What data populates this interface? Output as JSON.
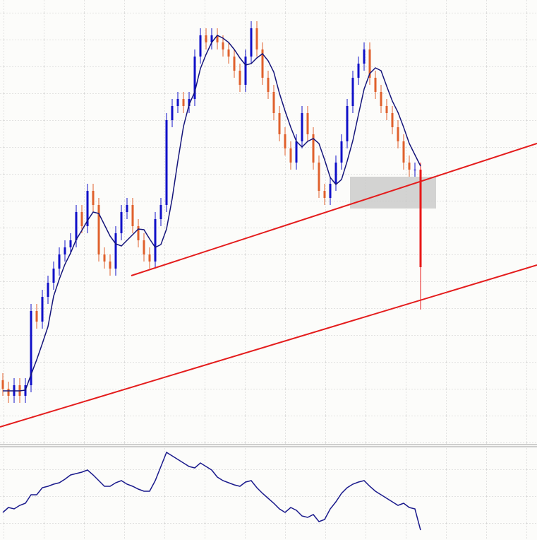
{
  "chart_data": [
    {
      "type": "candlestick",
      "xlim": [
        -0.5,
        94.625
      ],
      "ylim": [
        0,
        628
      ],
      "up_color": "#1010c8",
      "down_color": "#e0602c",
      "last_color": "#e81818",
      "open": [
        90,
        78,
        68,
        83,
        68,
        83,
        188,
        173,
        208,
        228,
        248,
        268,
        278,
        288,
        328,
        308,
        358,
        338,
        268,
        258,
        248,
        298,
        328,
        338,
        308,
        288,
        268,
        258,
        318,
        338,
        458,
        478,
        488,
        478,
        488,
        548,
        578,
        568,
        578,
        568,
        558,
        548,
        528,
        508,
        548,
        588,
        558,
        518,
        498,
        468,
        438,
        418,
        398,
        428,
        468,
        438,
        398,
        358,
        348,
        368,
        398,
        428,
        478,
        518,
        538,
        558,
        518,
        498,
        478,
        468,
        448,
        428,
        398,
        388,
        388
      ],
      "high": [
        100,
        88,
        93,
        93,
        93,
        198,
        198,
        218,
        238,
        258,
        278,
        288,
        298,
        338,
        338,
        368,
        368,
        348,
        278,
        268,
        308,
        338,
        348,
        348,
        318,
        298,
        278,
        328,
        348,
        468,
        488,
        498,
        498,
        498,
        558,
        588,
        588,
        588,
        588,
        578,
        568,
        558,
        538,
        558,
        598,
        598,
        568,
        528,
        508,
        478,
        448,
        428,
        438,
        478,
        478,
        448,
        408,
        368,
        378,
        408,
        438,
        488,
        528,
        548,
        568,
        568,
        528,
        508,
        488,
        478,
        458,
        438,
        408,
        398,
        398
      ],
      "low": [
        68,
        58,
        58,
        58,
        58,
        73,
        163,
        163,
        198,
        218,
        238,
        258,
        268,
        278,
        298,
        298,
        328,
        258,
        248,
        238,
        238,
        288,
        318,
        298,
        278,
        258,
        248,
        248,
        308,
        328,
        448,
        468,
        468,
        468,
        478,
        538,
        558,
        558,
        558,
        548,
        538,
        518,
        498,
        498,
        538,
        548,
        508,
        488,
        458,
        428,
        408,
        388,
        388,
        418,
        428,
        388,
        348,
        338,
        338,
        358,
        388,
        418,
        468,
        508,
        528,
        508,
        488,
        468,
        458,
        438,
        418,
        388,
        378,
        378,
        190
      ],
      "close": [
        78,
        68,
        83,
        68,
        83,
        188,
        173,
        208,
        228,
        248,
        268,
        278,
        288,
        328,
        308,
        358,
        338,
        268,
        258,
        248,
        298,
        328,
        338,
        308,
        288,
        268,
        258,
        318,
        338,
        458,
        478,
        488,
        478,
        488,
        548,
        578,
        568,
        578,
        568,
        558,
        548,
        528,
        508,
        548,
        588,
        558,
        518,
        498,
        468,
        438,
        418,
        398,
        428,
        468,
        438,
        398,
        358,
        348,
        368,
        398,
        428,
        478,
        518,
        538,
        558,
        518,
        498,
        478,
        468,
        448,
        428,
        398,
        388,
        388,
        250
      ],
      "ma": {
        "color": "#14147a",
        "values": [
          75,
          75,
          75,
          75,
          76,
          98,
          119,
          142,
          166,
          209,
          233,
          254,
          270,
          289,
          302,
          316,
          328,
          326,
          310,
          294,
          283,
          280,
          288,
          296,
          304,
          303,
          290,
          278,
          282,
          304,
          347,
          400,
          449,
          480,
          498,
          531,
          551,
          568,
          578,
          574,
          568,
          558,
          546,
          536,
          538,
          546,
          552,
          542,
          526,
          496,
          471,
          448,
          428,
          420,
          428,
          432,
          425,
          402,
          377,
          367,
          374,
          400,
          429,
          466,
          502,
          524,
          532,
          528,
          506,
          485,
          469,
          448,
          425,
          409,
          393
        ]
      },
      "trendlines": {
        "color": "#e41c1c",
        "lines": [
          {
            "x": [
              22.75,
              94.625
            ],
            "y": [
              238,
              425
            ]
          },
          {
            "x": [
              -0.5,
              94.625
            ],
            "y": [
              24,
              253
            ]
          }
        ]
      },
      "zone": {
        "color": "#c8c8c8",
        "x": [
          61.5,
          76.75
        ],
        "y": [
          333,
          378
        ]
      }
    },
    {
      "type": "line",
      "xlim": [
        -0.5,
        94.625
      ],
      "ylim": [
        0,
        132
      ],
      "color": "#1a1a8c",
      "values": [
        39,
        46,
        44,
        49,
        52,
        64,
        64,
        74,
        76,
        79,
        81,
        86,
        92,
        94,
        96,
        99,
        92,
        84,
        76,
        76,
        81,
        84,
        79,
        76,
        72,
        69,
        69,
        84,
        104,
        124,
        119,
        114,
        109,
        104,
        102,
        109,
        104,
        99,
        89,
        84,
        81,
        78,
        76,
        82,
        84,
        74,
        66,
        59,
        52,
        44,
        39,
        46,
        42,
        34,
        32,
        36,
        26,
        29,
        44,
        54,
        66,
        74,
        79,
        82,
        84,
        76,
        69,
        64,
        59,
        54,
        49,
        52,
        46,
        44,
        14
      ]
    }
  ]
}
